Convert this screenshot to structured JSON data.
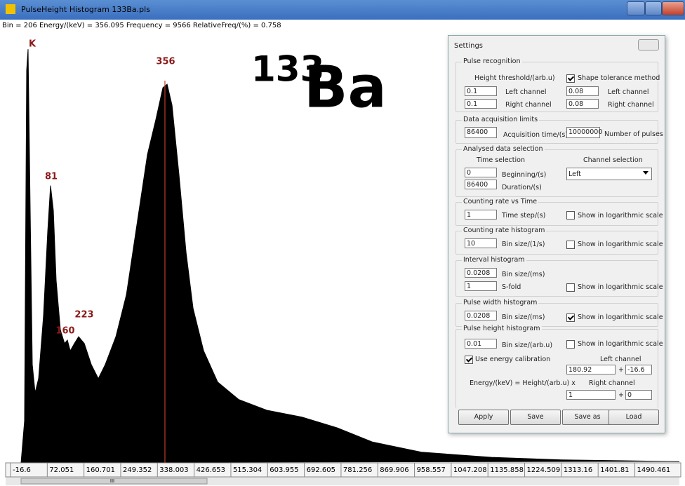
{
  "window": {
    "title": "PulseHeight Histogram   133Ba.pls"
  },
  "status": "Bin = 206  Energy/(keV) = 356.095  Frequency = 9566  RelativeFreq/(%) = 0.758",
  "chart_data": {
    "type": "area",
    "color": "#000000",
    "cursor": 356.095,
    "cursor_color": "#c0392b",
    "x": [
      8.8,
      17.3,
      22.4,
      25.8,
      30.9,
      35.9,
      42.7,
      51.2,
      63.1,
      73.2,
      80.0,
      86.8,
      93.6,
      103.7,
      113.9,
      120.7,
      127.5,
      137.6,
      147.8,
      161.4,
      178.3,
      195.3,
      212.2,
      237.7,
      263.1,
      288.5,
      313.9,
      334.3,
      351.2,
      361.4,
      373.3,
      390.2,
      407.2,
      424.1,
      449.5,
      483.4,
      534.3,
      602.1,
      686.8,
      771.6,
      856.3,
      975.0,
      1144.5,
      1314.0,
      1598
    ],
    "values": [
      0,
      9.8,
      91.8,
      96.7,
      59,
      23,
      16.4,
      19.7,
      34.4,
      54.1,
      64.8,
      59,
      42.6,
      31.1,
      27.9,
      28.7,
      26.2,
      27.9,
      29.5,
      27.9,
      23,
      19.7,
      23,
      29.5,
      39.3,
      55.7,
      72.1,
      80.3,
      87.7,
      88.5,
      83.6,
      67.2,
      49.2,
      36.1,
      26.2,
      18.9,
      14.8,
      12.3,
      10.7,
      8.2,
      4.9,
      2.5,
      1.3,
      0.7,
      0.3
    ],
    "xlim": [
      -16.6,
      1598
    ],
    "ylim": [
      0,
      100
    ],
    "xticks": [
      -16.6,
      72.051,
      160.701,
      249.352,
      338.003,
      426.653,
      515.304,
      603.955,
      692.605,
      781.256,
      869.906,
      958.557,
      1047.208,
      1135.858,
      1224.509,
      1313.16,
      1401.81,
      1490.461
    ],
    "annotations": [
      "K",
      "356",
      "81",
      "160",
      "223"
    ],
    "isotope": {
      "mass": "133",
      "symbol": "Ba"
    }
  },
  "settings": {
    "title": "Settings",
    "pulse_recognition": {
      "legend": "Pulse recognition",
      "height_label": "Height threshold/(arb.u)",
      "shape_label": "Shape tolerance method",
      "shape_checked": true,
      "height_left": "0.1",
      "height_left_label": "Left channel",
      "height_right": "0.1",
      "height_right_label": "Right channel",
      "shape_left": "0.08",
      "shape_left_label": "Left channel",
      "shape_right": "0.08",
      "shape_right_label": "Right channel"
    },
    "acquisition": {
      "legend": "Data acquisition limits",
      "time": "86400",
      "time_label": "Acquisition time/(s)",
      "pulses": "10000000",
      "pulses_label": "Number of pulses"
    },
    "analysed": {
      "legend": "Analysed data selection",
      "time_heading": "Time selection",
      "channel_heading": "Channel selection",
      "beginning": "0",
      "beginning_label": "Beginning/(s)",
      "duration": "86400",
      "duration_label": "Duration/(s)",
      "channel": "Left"
    },
    "rate_time": {
      "legend": "Counting rate vs Time",
      "step": "1",
      "step_label": "Time step/(s)",
      "log_label": "Show in logarithmic scale",
      "log_checked": false
    },
    "rate_hist": {
      "legend": "Counting rate histogram",
      "bin": "10",
      "bin_label": "Bin size/(1/s)",
      "log_label": "Show in logarithmic scale",
      "log_checked": false
    },
    "interval_hist": {
      "legend": "Interval histogram",
      "bin": "0.0208",
      "bin_label": "Bin size/(ms)",
      "fold": "1",
      "fold_label": "S-fold",
      "log_label": "Show in logarithmic scale",
      "log_checked": false
    },
    "width_hist": {
      "legend": "Pulse width histogram",
      "bin": "0.0208",
      "bin_label": "Bin size/(ms)",
      "log_label": "Show in logarithmic scale",
      "log_checked": true
    },
    "height_hist": {
      "legend": "Pulse height histogram",
      "bin": "0.01",
      "bin_label": "Bin size/(arb.u)",
      "log_label": "Show in logarithmic scale",
      "log_checked": false,
      "calib_label": "Use energy calibration",
      "calib_checked": true,
      "formula": "Energy/(keV) = Height/(arb.u) x",
      "left_heading": "Left channel",
      "left_gain": "180.92",
      "left_plus": "+",
      "left_offset": "-16.6",
      "right_heading": "Right channel",
      "right_gain": "1",
      "right_plus": "+",
      "right_offset": "0"
    },
    "buttons": [
      "Apply",
      "Save",
      "Save as",
      "Load"
    ]
  },
  "scrollbar": {
    "thumb": "III"
  }
}
